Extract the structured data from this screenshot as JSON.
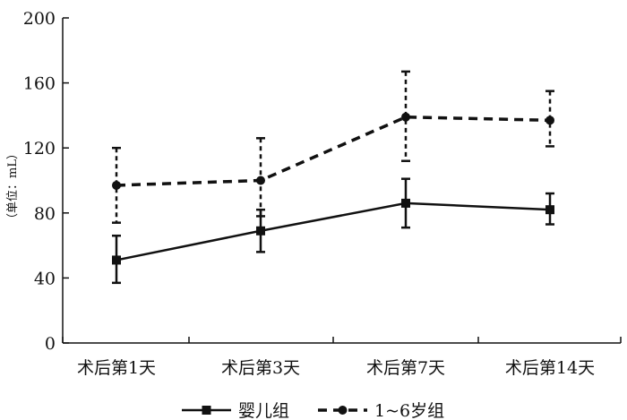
{
  "chart_data": {
    "type": "line",
    "title": "",
    "xlabel": "",
    "ylabel": "（单位：mL）",
    "ylim": [
      0,
      200
    ],
    "yticks": [
      0,
      40,
      80,
      120,
      160,
      200
    ],
    "categories": [
      "术后第1天",
      "术后第3天",
      "术后第7天",
      "术后第14天"
    ],
    "series": [
      {
        "name": "婴儿组",
        "values": [
          51,
          69,
          86,
          82
        ],
        "err_low": [
          37,
          56,
          71,
          73
        ],
        "err_high": [
          66,
          82,
          101,
          92
        ],
        "line_style": "solid",
        "marker": "square",
        "color": "#111111"
      },
      {
        "name": "1~6岁组",
        "values": [
          97,
          100,
          139,
          137
        ],
        "err_low": [
          74,
          78,
          112,
          121
        ],
        "err_high": [
          120,
          126,
          167,
          155
        ],
        "line_style": "dashed",
        "marker": "circle",
        "color": "#111111"
      }
    ],
    "grid": false,
    "legend_position": "bottom"
  }
}
